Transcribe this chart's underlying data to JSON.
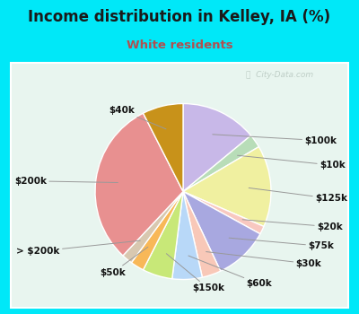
{
  "title": "Income distribution in Kelley, IA (%)",
  "subtitle": "White residents",
  "title_color": "#1a1a1a",
  "subtitle_color": "#b05050",
  "background_outer": "#00e8f8",
  "background_inner_top": "#f0faf5",
  "background_inner_bottom": "#d8f0e8",
  "watermark": "City-Data.com",
  "slices": [
    {
      "label": "$100k",
      "value": 14.0,
      "color": "#c8b8e8"
    },
    {
      "label": "$10k",
      "value": 2.5,
      "color": "#b8ddb8"
    },
    {
      "label": "$125k",
      "value": 15.0,
      "color": "#f0f0a0"
    },
    {
      "label": "$20k",
      "value": 1.5,
      "color": "#f8c8c0"
    },
    {
      "label": "$75k",
      "value": 10.0,
      "color": "#a8a8e0"
    },
    {
      "label": "$30k",
      "value": 3.5,
      "color": "#f8c8b8"
    },
    {
      "label": "$60k",
      "value": 5.5,
      "color": "#b8d8f8"
    },
    {
      "label": "$150k",
      "value": 5.5,
      "color": "#c8e878"
    },
    {
      "label": "$50k",
      "value": 2.5,
      "color": "#f8b858"
    },
    {
      "label": "> $200k",
      "value": 2.0,
      "color": "#d8c8b0"
    },
    {
      "label": "$200k",
      "value": 30.5,
      "color": "#e89090"
    },
    {
      "label": "$40k",
      "value": 7.5,
      "color": "#c8921a"
    }
  ],
  "label_fontsize": 7.5,
  "title_fontsize": 12,
  "subtitle_fontsize": 9.5
}
